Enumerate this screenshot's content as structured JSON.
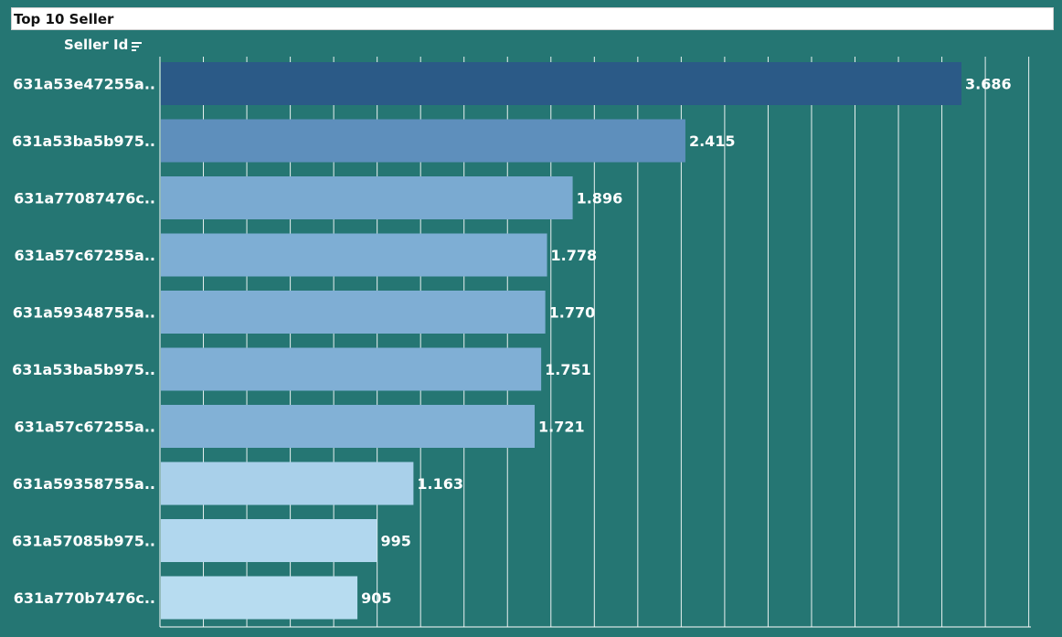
{
  "title": "Top 10 Seller",
  "field_header": "Seller Id",
  "icons": {
    "sort": "sort-descending-icon"
  },
  "chart_data": {
    "type": "bar",
    "orientation": "horizontal",
    "title": "Top 10 Seller",
    "ylabel": "Seller Id",
    "categories": [
      "631a53e47255a..",
      "631a53ba5b975..",
      "631a77087476c..",
      "631a57c67255a..",
      "631a59348755a..",
      "631a53ba5b975..",
      "631a57c67255a..",
      "631a59358755a..",
      "631a57085b975..",
      "631a770b7476c.."
    ],
    "values": [
      3686,
      2415,
      1896,
      1778,
      1770,
      1751,
      1721,
      1163,
      995,
      905
    ],
    "value_labels": [
      "3.686",
      "2.415",
      "1.896",
      "1.778",
      "1.770",
      "1.751",
      "1.721",
      "1.163",
      "995",
      "905"
    ],
    "colors": [
      "#2b5a87",
      "#5e8fbc",
      "#7aaad1",
      "#7eaed4",
      "#7faed4",
      "#80afd5",
      "#82b1d6",
      "#a9d0ea",
      "#b1d7ee",
      "#b7dcf0"
    ],
    "xlim": [
      0,
      4000
    ],
    "grid": true,
    "background": "#257673"
  }
}
